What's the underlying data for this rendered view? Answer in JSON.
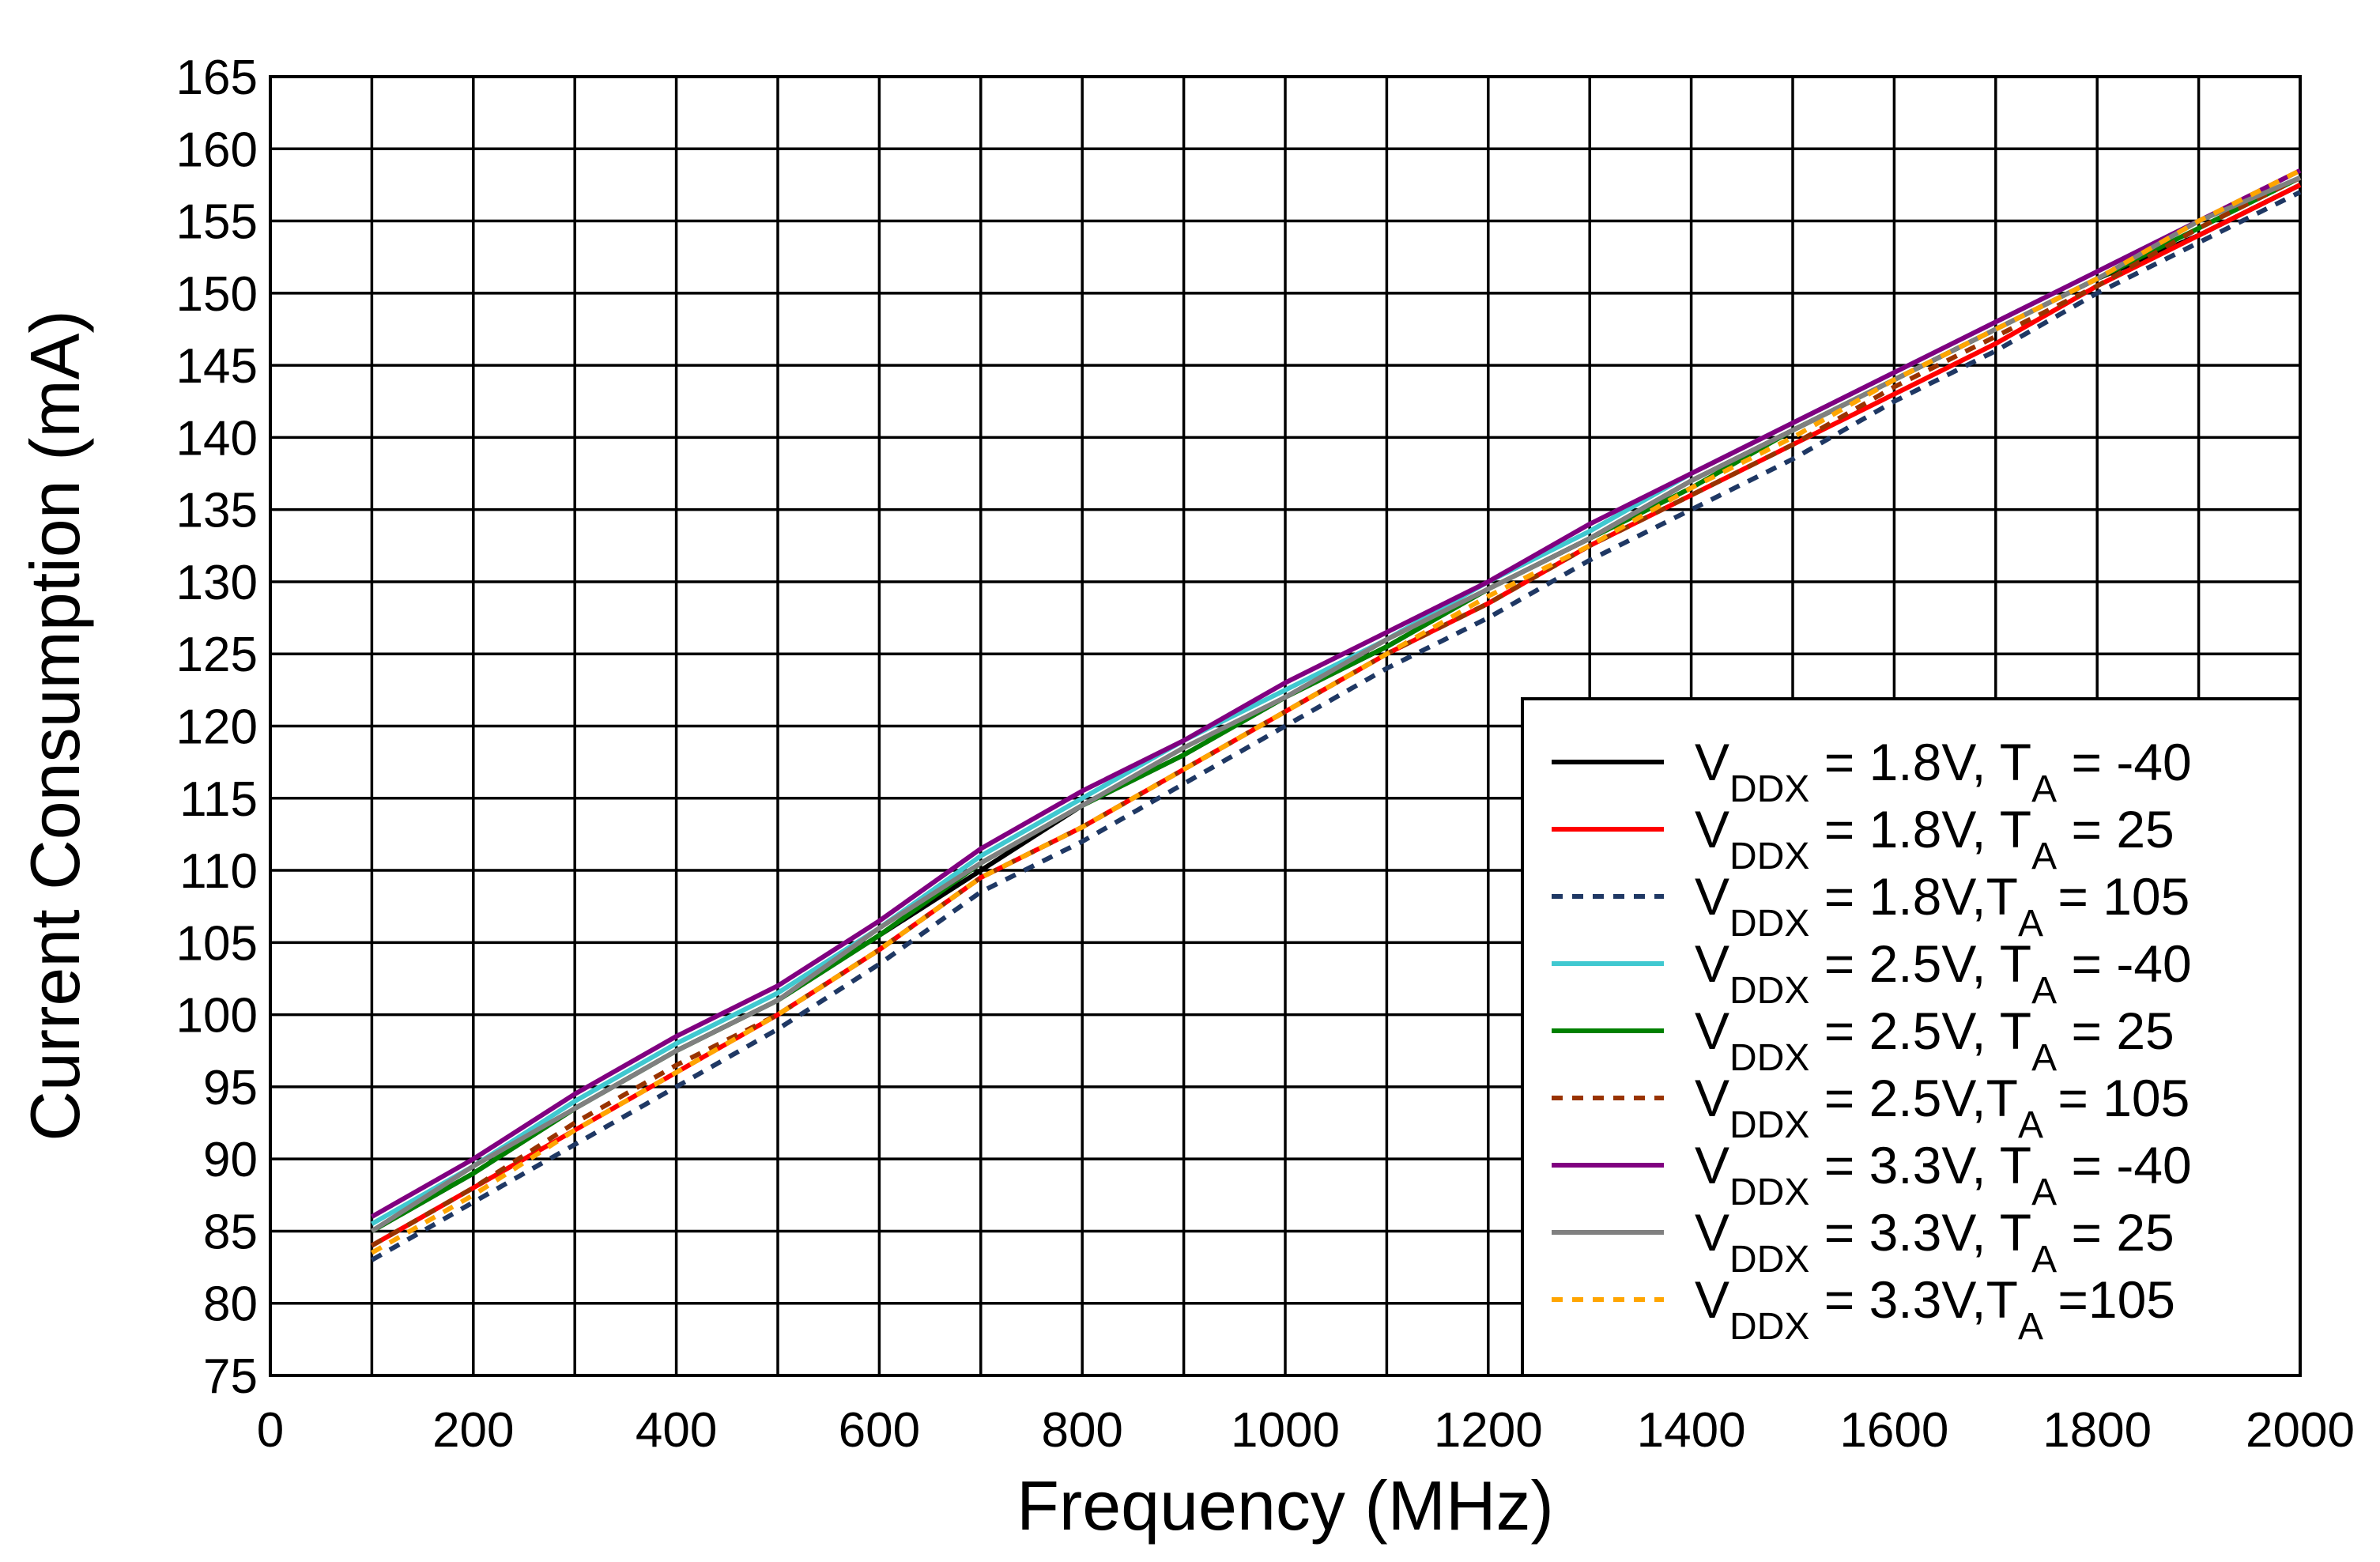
{
  "chart_data": {
    "type": "line",
    "xlabel": "Frequency (MHz)",
    "ylabel": "Current Consumption (mA)",
    "x": [
      100,
      200,
      300,
      400,
      500,
      600,
      700,
      800,
      900,
      1000,
      1100,
      1200,
      1300,
      1400,
      1500,
      1600,
      1700,
      1800,
      1900,
      2000
    ],
    "xlim": [
      0,
      2000
    ],
    "xticks": [
      0,
      200,
      400,
      600,
      800,
      1000,
      1200,
      1400,
      1600,
      1800,
      2000
    ],
    "xminorticks": [
      100,
      300,
      500,
      700,
      900,
      1100,
      1300,
      1500,
      1700,
      1900
    ],
    "ylim": [
      75,
      165
    ],
    "yticks": [
      75,
      80,
      85,
      90,
      95,
      100,
      105,
      110,
      115,
      120,
      125,
      130,
      135,
      140,
      145,
      150,
      155,
      160,
      165
    ],
    "grid": true,
    "legend": "lower right",
    "series": [
      {
        "name": "VDDX = 1.8V, TA = -40",
        "color": "#000000",
        "dash": false,
        "values": [
          85,
          89,
          93.5,
          97.5,
          101,
          105.5,
          110,
          114.5,
          118,
          122,
          125.5,
          129.5,
          133,
          137,
          140.5,
          144,
          147.5,
          151,
          154,
          157.5
        ]
      },
      {
        "name": "VDDX = 1.8V, TA = 25",
        "color": "#ff0000",
        "dash": false,
        "values": [
          84,
          88,
          92,
          96,
          100,
          104.5,
          109.5,
          113,
          117,
          121,
          125,
          128.5,
          132.5,
          136,
          139.5,
          143,
          146.5,
          150.5,
          154,
          157.5
        ]
      },
      {
        "name": "VDDX = 1.8V,TA = 105",
        "color": "#1f3864",
        "dash": true,
        "values": [
          83,
          87,
          91,
          95,
          99,
          103.5,
          108.5,
          112,
          116,
          120,
          124,
          127.5,
          131.5,
          135,
          138.5,
          142.5,
          146,
          150,
          153.5,
          157
        ]
      },
      {
        "name": "VDDX = 2.5V, TA = -40",
        "color": "#40c8d0",
        "dash": false,
        "values": [
          85.5,
          89.5,
          94,
          98,
          101.5,
          106,
          111,
          115,
          119,
          122.5,
          126,
          130,
          133.5,
          137.5,
          141,
          144.5,
          148,
          151.5,
          155,
          158
        ]
      },
      {
        "name": "VDDX = 2.5V, TA = 25",
        "color": "#008000",
        "dash": false,
        "values": [
          85,
          89,
          93.5,
          97.5,
          101,
          105.5,
          110.5,
          114.5,
          118,
          122,
          125.5,
          129.5,
          133,
          136.5,
          140.5,
          144,
          147.5,
          151,
          154.5,
          158
        ]
      },
      {
        "name": "VDDX = 2.5V,TA = 105",
        "color": "#993300",
        "dash": true,
        "values": [
          84,
          88,
          92.5,
          96.5,
          100,
          104.5,
          109.5,
          113,
          117,
          121,
          125,
          128.5,
          132.5,
          136,
          139.5,
          143.5,
          147,
          150.5,
          154.5,
          158
        ]
      },
      {
        "name": "VDDX = 3.3V, TA = -40",
        "color": "#800080",
        "dash": false,
        "values": [
          86,
          90,
          94.5,
          98.5,
          102,
          106.5,
          111.5,
          115.5,
          119,
          123,
          126.5,
          130,
          134,
          137.5,
          141,
          144.5,
          148,
          151.5,
          155,
          158.5
        ]
      },
      {
        "name": "VDDX = 3.3V, TA = 25",
        "color": "#808080",
        "dash": false,
        "values": [
          85,
          89.5,
          93.5,
          97.5,
          101,
          106,
          110.5,
          114.5,
          118.5,
          122,
          126,
          129.5,
          133,
          137,
          140.5,
          144,
          147.5,
          151,
          155,
          158
        ]
      },
      {
        "name": "VDDX = 3.3V,TA =105",
        "color": "#ffa500",
        "dash": true,
        "values": [
          83.5,
          87.5,
          92,
          96,
          100,
          104.5,
          109.5,
          113,
          117,
          121,
          125,
          129,
          132.5,
          136.5,
          140,
          144,
          147.5,
          151,
          155,
          158.5
        ]
      }
    ]
  }
}
